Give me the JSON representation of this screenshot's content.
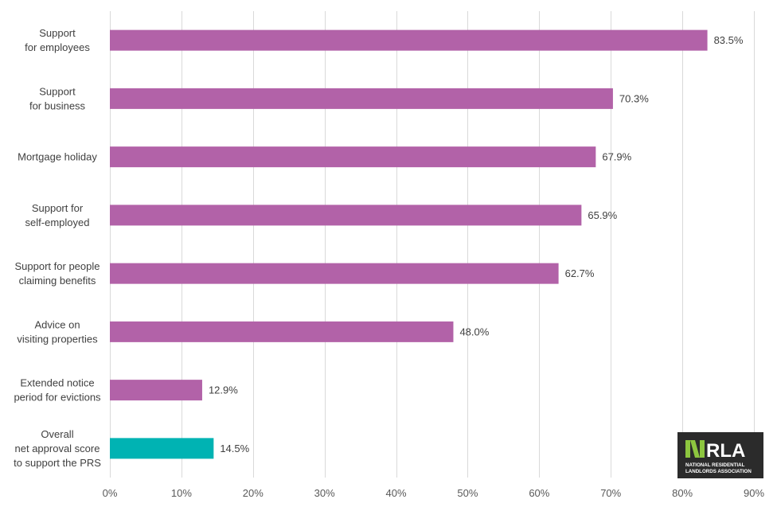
{
  "chart_data": {
    "type": "bar",
    "orientation": "horizontal",
    "categories": [
      [
        "Support",
        "for employees"
      ],
      [
        "Support",
        "for business"
      ],
      [
        "Mortgage holiday"
      ],
      [
        "Support for",
        "self-employed"
      ],
      [
        "Support for people",
        "claiming benefits"
      ],
      [
        "Advice on",
        "visiting properties"
      ],
      [
        "Extended notice",
        "period for evictions"
      ],
      [
        "Overall",
        "net approval score",
        "to support the PRS"
      ]
    ],
    "values": [
      83.5,
      70.3,
      67.9,
      65.9,
      62.7,
      48.0,
      12.9,
      14.5
    ],
    "value_labels": [
      "83.5%",
      "70.3%",
      "67.9%",
      "65.9%",
      "62.7%",
      "48.0%",
      "12.9%",
      "14.5%"
    ],
    "bar_colors": [
      "#b262a8",
      "#b262a8",
      "#b262a8",
      "#b262a8",
      "#b262a8",
      "#b262a8",
      "#b262a8",
      "#00b3b3"
    ],
    "xlim": [
      0,
      90
    ],
    "xticks": [
      0,
      10,
      20,
      30,
      40,
      50,
      60,
      70,
      80,
      90
    ],
    "xtick_labels": [
      "0%",
      "10%",
      "20%",
      "30%",
      "40%",
      "50%",
      "60%",
      "70%",
      "80%",
      "90%"
    ],
    "grid": "vertical",
    "legend": "none",
    "title": "",
    "xlabel": "",
    "ylabel": ""
  },
  "logo": {
    "name": "NRLA",
    "text_main": "NRLA",
    "text_sub_1": "NATIONAL RESIDENTIAL",
    "text_sub_2": "LANDLORDS ASSOCIATION",
    "accent_color": "#8dc63f",
    "background_color": "#2b2b2b"
  }
}
